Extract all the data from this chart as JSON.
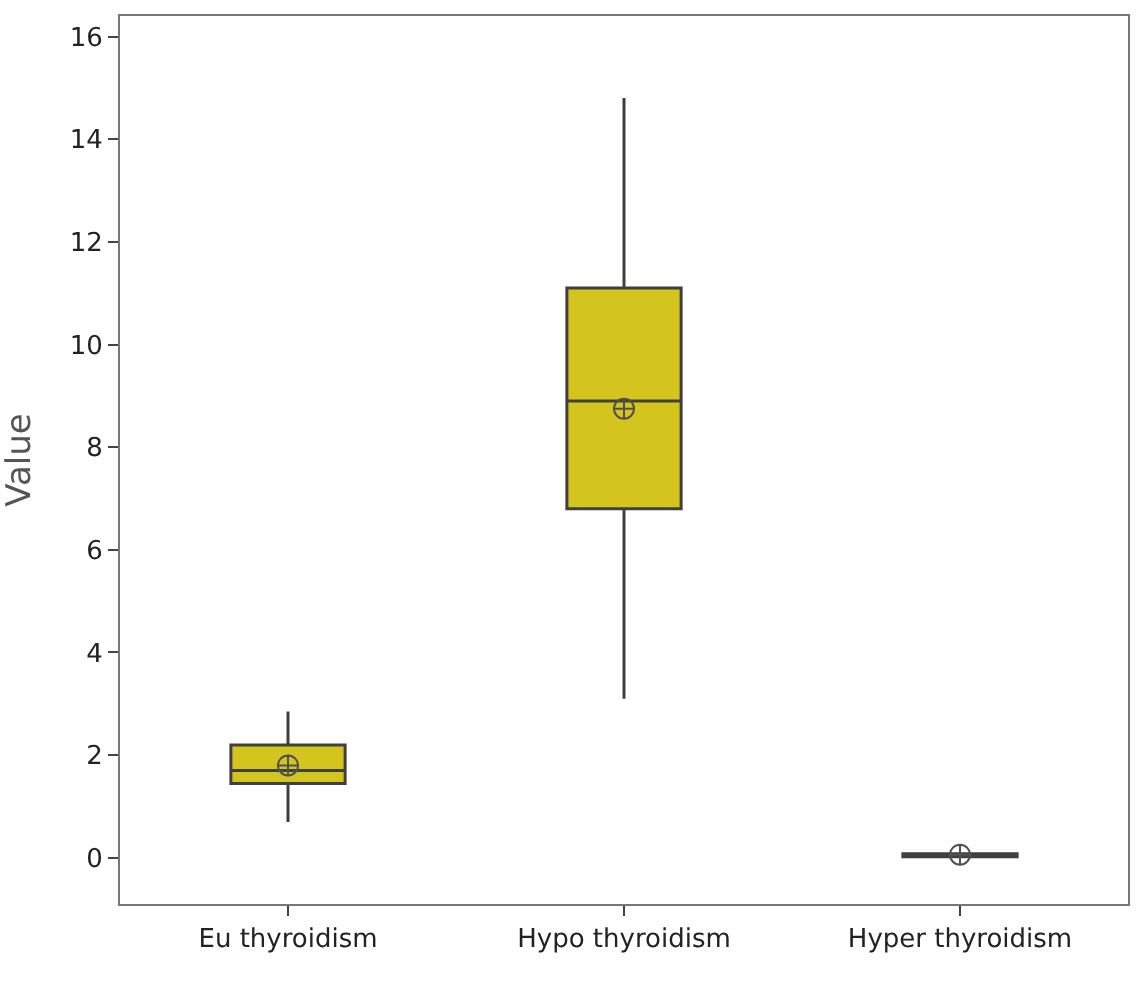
{
  "chart_data": {
    "type": "box",
    "ylabel": "Value",
    "categories": [
      "Eu thyroidism",
      "Hypo thyroidism",
      "Hyper thyroidism"
    ],
    "boxes": [
      {
        "low": 0.7,
        "q1": 1.45,
        "median": 1.7,
        "q3": 2.2,
        "high": 2.85,
        "mean": 1.8
      },
      {
        "low": 3.1,
        "q1": 6.8,
        "median": 8.9,
        "q3": 11.1,
        "high": 14.8,
        "mean": 8.75
      },
      {
        "low": 0.02,
        "q1": 0.02,
        "median": 0.05,
        "q3": 0.08,
        "high": 0.08,
        "mean": 0.06
      }
    ],
    "color": "#d4c41e",
    "ylim": [
      -0.9,
      16.4
    ],
    "yticks": [
      0,
      2,
      4,
      6,
      8,
      10,
      12,
      14,
      16
    ]
  }
}
